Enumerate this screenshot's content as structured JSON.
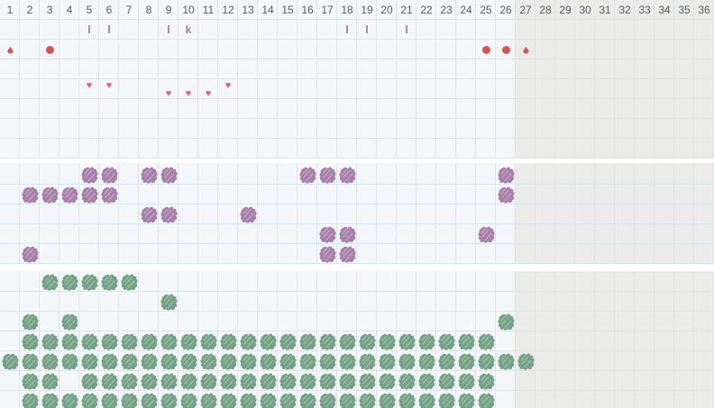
{
  "header": {
    "day_numbers": [
      "1",
      "2",
      "3",
      "4",
      "5",
      "6",
      "7",
      "8",
      "9",
      "10",
      "11",
      "12",
      "13",
      "14",
      "15",
      "16",
      "17",
      "18",
      "19",
      "20",
      "21",
      "22",
      "23",
      "24",
      "25",
      "26",
      "27",
      "28",
      "29",
      "30",
      "31",
      "32",
      "33",
      "34",
      "35",
      "36"
    ],
    "active_day_count": 26,
    "total_day_count": 36
  },
  "colors": {
    "active_background": "#f3f7f9",
    "inactive_background": "#ebebe9",
    "grid_line": "#d6e8ef",
    "day_number_text": "#565c61",
    "letter_mark": "#ad6f9e",
    "flow_red": "#d9534f",
    "heart_pink": "#dd6186",
    "middle_blob_purple": "#a87fa9",
    "bottom_blob_green": "#73a284"
  },
  "top_section": {
    "letter_marks": [
      {
        "col": 5,
        "glyph": "l"
      },
      {
        "col": 6,
        "glyph": "l"
      },
      {
        "col": 9,
        "glyph": "l"
      },
      {
        "col": 10,
        "glyph": "k"
      },
      {
        "col": 18,
        "glyph": "l"
      },
      {
        "col": 19,
        "glyph": "l"
      },
      {
        "col": 21,
        "glyph": "l"
      }
    ],
    "flow_marks": [
      {
        "col": 1,
        "shape": "droplet"
      },
      {
        "col": 3,
        "shape": "circle"
      },
      {
        "col": 25,
        "shape": "circle"
      },
      {
        "col": 26,
        "shape": "circle"
      },
      {
        "col": 27,
        "shape": "droplet"
      }
    ],
    "heart_marks": [
      {
        "col": 5,
        "position": "upper"
      },
      {
        "col": 6,
        "position": "upper"
      },
      {
        "col": 9,
        "position": "lower"
      },
      {
        "col": 10,
        "position": "lower"
      },
      {
        "col": 11,
        "position": "lower"
      },
      {
        "col": 12,
        "position": "upper"
      }
    ],
    "heart_glyph": "♥"
  },
  "middle_section": {
    "blob_rows": [
      [
        5,
        6,
        8,
        9,
        16,
        17,
        18,
        26
      ],
      [
        2,
        3,
        4,
        5,
        6,
        26
      ],
      [
        8,
        9,
        13
      ],
      [
        17,
        18,
        25
      ],
      [
        2,
        17,
        18
      ]
    ]
  },
  "bottom_section": {
    "blob_rows": [
      [
        3,
        4,
        5,
        6,
        7
      ],
      [
        9
      ],
      [
        2,
        4,
        26
      ],
      [
        2,
        3,
        4,
        5,
        6,
        7,
        8,
        9,
        10,
        11,
        12,
        13,
        14,
        15,
        16,
        17,
        18,
        19,
        20,
        21,
        22,
        23,
        24,
        25
      ],
      [
        1,
        2,
        3,
        4,
        5,
        6,
        7,
        8,
        9,
        10,
        11,
        12,
        13,
        14,
        15,
        16,
        17,
        18,
        19,
        20,
        21,
        22,
        23,
        24,
        25,
        26,
        27
      ],
      [
        2,
        3,
        5,
        6,
        7,
        8,
        9,
        10,
        11,
        12,
        13,
        14,
        15,
        16,
        17,
        18,
        19,
        20,
        21,
        22,
        23,
        24,
        25
      ],
      [
        2,
        3,
        4,
        5,
        6,
        7,
        8,
        9,
        10,
        11,
        12,
        13,
        14,
        15,
        16,
        17,
        18,
        19,
        20,
        21,
        22,
        23,
        24,
        25
      ]
    ]
  }
}
